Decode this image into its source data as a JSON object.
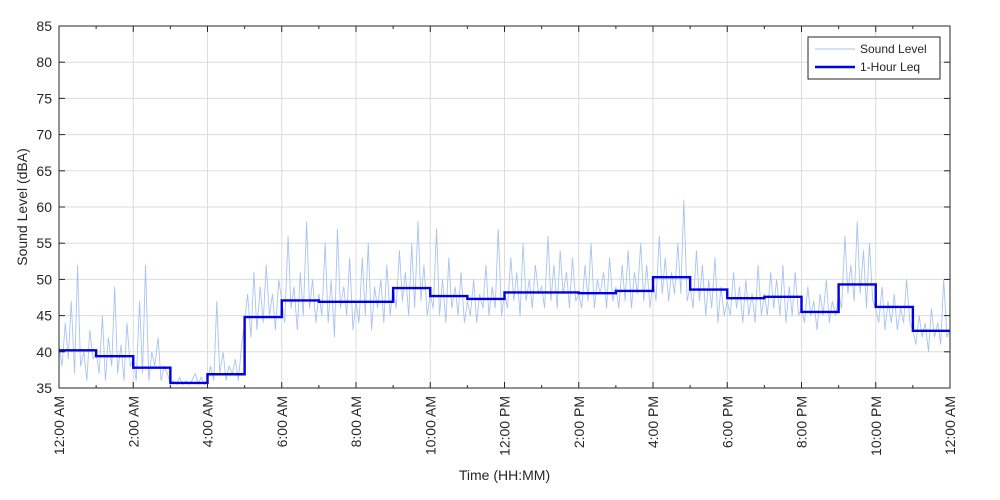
{
  "chart_data": {
    "type": "line",
    "xlabel": "Time (HH:MM)",
    "ylabel": "Sound Level (dBA)",
    "xlim": [
      0,
      24
    ],
    "ylim": [
      35,
      85
    ],
    "x_unit": "hours",
    "x_tick_labels": [
      "12:00 AM",
      "2:00 AM",
      "4:00 AM",
      "6:00 AM",
      "8:00 AM",
      "10:00 AM",
      "12:00 PM",
      "2:00 PM",
      "4:00 PM",
      "6:00 PM",
      "8:00 PM",
      "10:00 PM",
      "12:00 AM"
    ],
    "y_ticks": [
      35,
      40,
      45,
      50,
      55,
      60,
      65,
      70,
      75,
      80,
      85
    ],
    "grid": true,
    "legend_position": "top-right",
    "colors": {
      "sound_level": "#a9c4f0",
      "leq": "#0000e6",
      "axis": "#262626",
      "grid": "#dcdcdc"
    },
    "series": [
      {
        "name": "Sound Level",
        "style": "thin-line",
        "x": [
          0.0,
          0.08,
          0.17,
          0.25,
          0.33,
          0.42,
          0.5,
          0.58,
          0.67,
          0.75,
          0.83,
          0.92,
          1.0,
          1.08,
          1.17,
          1.25,
          1.33,
          1.42,
          1.5,
          1.58,
          1.67,
          1.75,
          1.83,
          1.92,
          2.0,
          2.08,
          2.17,
          2.25,
          2.33,
          2.42,
          2.5,
          2.58,
          2.67,
          2.75,
          2.83,
          2.92,
          3.0,
          3.08,
          3.17,
          3.25,
          3.33,
          3.42,
          3.5,
          3.58,
          3.67,
          3.75,
          3.83,
          3.92,
          4.0,
          4.08,
          4.17,
          4.25,
          4.33,
          4.42,
          4.5,
          4.58,
          4.67,
          4.75,
          4.83,
          4.92,
          5.0,
          5.08,
          5.17,
          5.25,
          5.33,
          5.42,
          5.5,
          5.58,
          5.67,
          5.75,
          5.83,
          5.92,
          6.0,
          6.08,
          6.17,
          6.25,
          6.33,
          6.42,
          6.5,
          6.58,
          6.67,
          6.75,
          6.83,
          6.92,
          7.0,
          7.08,
          7.17,
          7.25,
          7.33,
          7.42,
          7.5,
          7.58,
          7.67,
          7.75,
          7.83,
          7.92,
          8.0,
          8.08,
          8.17,
          8.25,
          8.33,
          8.42,
          8.5,
          8.58,
          8.67,
          8.75,
          8.83,
          8.92,
          9.0,
          9.08,
          9.17,
          9.25,
          9.33,
          9.42,
          9.5,
          9.58,
          9.67,
          9.75,
          9.83,
          9.92,
          10.0,
          10.08,
          10.17,
          10.25,
          10.33,
          10.42,
          10.5,
          10.58,
          10.67,
          10.75,
          10.83,
          10.92,
          11.0,
          11.08,
          11.17,
          11.25,
          11.33,
          11.42,
          11.5,
          11.58,
          11.67,
          11.75,
          11.83,
          11.92,
          12.0,
          12.08,
          12.17,
          12.25,
          12.33,
          12.42,
          12.5,
          12.58,
          12.67,
          12.75,
          12.83,
          12.92,
          13.0,
          13.08,
          13.17,
          13.25,
          13.33,
          13.42,
          13.5,
          13.58,
          13.67,
          13.75,
          13.83,
          13.92,
          14.0,
          14.08,
          14.17,
          14.25,
          14.33,
          14.42,
          14.5,
          14.58,
          14.67,
          14.75,
          14.83,
          14.92,
          15.0,
          15.08,
          15.17,
          15.25,
          15.33,
          15.42,
          15.5,
          15.58,
          15.67,
          15.75,
          15.83,
          15.92,
          16.0,
          16.08,
          16.17,
          16.25,
          16.33,
          16.42,
          16.5,
          16.58,
          16.67,
          16.75,
          16.83,
          16.92,
          17.0,
          17.08,
          17.17,
          17.25,
          17.33,
          17.42,
          17.5,
          17.58,
          17.67,
          17.75,
          17.83,
          17.92,
          18.0,
          18.08,
          18.17,
          18.25,
          18.33,
          18.42,
          18.5,
          18.58,
          18.67,
          18.75,
          18.83,
          18.92,
          19.0,
          19.08,
          19.17,
          19.25,
          19.33,
          19.42,
          19.5,
          19.58,
          19.67,
          19.75,
          19.83,
          19.92,
          20.0,
          20.08,
          20.17,
          20.25,
          20.33,
          20.42,
          20.5,
          20.58,
          20.67,
          20.75,
          20.83,
          20.92,
          21.0,
          21.08,
          21.17,
          21.25,
          21.33,
          21.42,
          21.5,
          21.58,
          21.67,
          21.75,
          21.83,
          21.92,
          22.0,
          22.08,
          22.17,
          22.25,
          22.33,
          22.42,
          22.5,
          22.58,
          22.67,
          22.75,
          22.83,
          22.92,
          23.0,
          23.08,
          23.17,
          23.25,
          23.33,
          23.42,
          23.5,
          23.58,
          23.67,
          23.75,
          23.83,
          23.92,
          24.0
        ],
        "values": [
          41,
          38,
          44,
          39,
          47,
          37,
          52,
          38,
          40,
          36,
          43,
          39,
          40,
          37,
          45,
          36,
          42,
          38,
          49,
          37,
          41,
          36,
          44,
          38,
          39,
          36,
          47,
          37,
          52,
          36,
          40,
          38,
          42,
          36,
          38,
          37,
          35.5,
          36,
          35.5,
          36.5,
          35.5,
          36,
          35.5,
          36,
          37,
          35.5,
          36.5,
          35.5,
          36,
          38,
          36,
          47,
          37,
          40,
          36,
          38,
          37,
          39,
          36,
          41,
          44,
          48,
          42,
          51,
          43,
          49,
          44,
          52,
          45,
          48,
          43,
          50,
          47,
          44,
          56,
          46,
          49,
          43,
          51,
          45,
          58,
          46,
          50,
          44,
          48,
          45,
          55,
          44,
          50,
          42,
          57,
          46,
          49,
          45,
          53,
          43,
          47,
          44,
          53,
          45,
          55,
          43,
          49,
          46,
          50,
          44,
          52,
          45,
          49,
          46,
          54,
          47,
          51,
          45,
          55,
          46,
          58,
          47,
          52,
          45,
          48,
          46,
          57,
          45,
          50,
          44,
          53,
          46,
          49,
          45,
          51,
          44,
          47,
          45,
          50,
          44,
          48,
          46,
          52,
          45,
          49,
          46,
          57,
          45,
          48,
          46,
          53,
          47,
          51,
          45,
          55,
          47,
          50,
          46,
          52,
          48,
          49,
          46,
          56,
          47,
          52,
          46,
          54,
          48,
          51,
          46,
          53,
          47,
          48,
          46,
          52,
          47,
          55,
          46,
          50,
          48,
          51,
          46,
          53,
          47,
          49,
          46,
          52,
          47,
          54,
          46,
          51,
          48,
          55,
          47,
          52,
          46,
          50,
          47,
          56,
          48,
          53,
          47,
          51,
          48,
          55,
          48,
          61,
          47,
          49,
          46,
          54,
          47,
          52,
          45,
          50,
          46,
          53,
          44,
          49,
          45,
          47,
          45,
          51,
          46,
          49,
          44,
          50,
          45,
          48,
          44,
          52,
          45,
          48,
          45,
          51,
          46,
          50,
          45,
          52,
          44,
          49,
          45,
          51,
          45,
          46,
          44,
          49,
          45,
          47,
          43,
          48,
          45,
          50,
          44,
          47,
          45,
          48,
          46,
          56,
          48,
          52,
          47,
          58,
          48,
          54,
          46,
          55,
          47,
          46,
          44,
          49,
          43,
          47,
          44,
          48,
          43,
          46,
          44,
          50,
          44,
          43,
          41,
          45,
          42,
          44,
          40,
          46,
          42,
          44,
          41,
          50,
          42,
          43
        ]
      },
      {
        "name": "1-Hour Leq",
        "style": "step",
        "x": [
          0,
          1,
          2,
          3,
          4,
          5,
          6,
          7,
          8,
          9,
          10,
          11,
          12,
          13,
          14,
          15,
          16,
          17,
          18,
          19,
          20,
          21,
          22,
          23,
          24
        ],
        "values": [
          40.2,
          39.4,
          37.8,
          35.7,
          36.9,
          44.8,
          47.1,
          46.9,
          46.9,
          48.8,
          47.7,
          47.3,
          48.2,
          48.2,
          48.1,
          48.4,
          50.3,
          48.6,
          47.4,
          47.6,
          45.5,
          49.3,
          46.2,
          42.9,
          42.9
        ]
      }
    ]
  }
}
